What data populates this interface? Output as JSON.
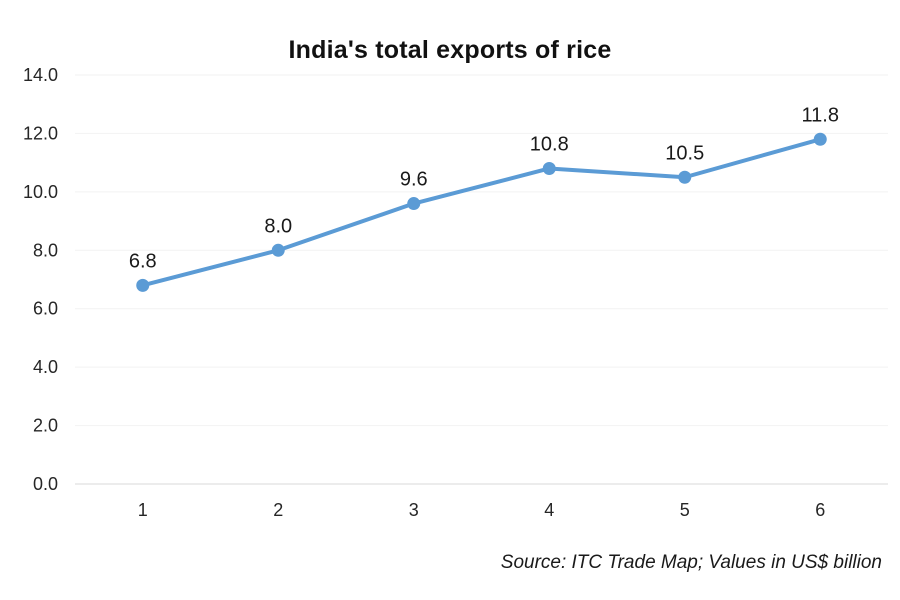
{
  "page": {
    "title": "India's total exports of rice",
    "source_note": "Source: ITC Trade Map; Values in US$ billion"
  },
  "chart_data": {
    "type": "line",
    "title": "India's total exports of rice",
    "categories": [
      "1",
      "2",
      "3",
      "4",
      "5",
      "6"
    ],
    "series": [
      {
        "name": "India's total exports of rice",
        "values": [
          6.8,
          8.0,
          9.6,
          10.8,
          10.5,
          11.8
        ],
        "color": "#5b9bd5"
      }
    ],
    "data_labels": [
      "6.8",
      "8.0",
      "9.6",
      "10.8",
      "10.5",
      "11.8"
    ],
    "xlabel": "",
    "ylabel": "",
    "ylim": [
      0,
      14
    ],
    "ytick_step": 2,
    "ytick_labels": [
      "0.0",
      "2.0",
      "4.0",
      "6.0",
      "8.0",
      "10.0",
      "12.0",
      "14.0"
    ],
    "grid": true,
    "legend_position": "none",
    "marker": "circle",
    "source_note": "Source: ITC Trade Map; Values in US$ billion"
  },
  "colors": {
    "line": "#5b9bd5",
    "grid": "#f2f2f2",
    "axis_line": "#d9d9d9",
    "tick_text": "#262626",
    "label_text": "#1a1a1a",
    "background": "#ffffff"
  }
}
